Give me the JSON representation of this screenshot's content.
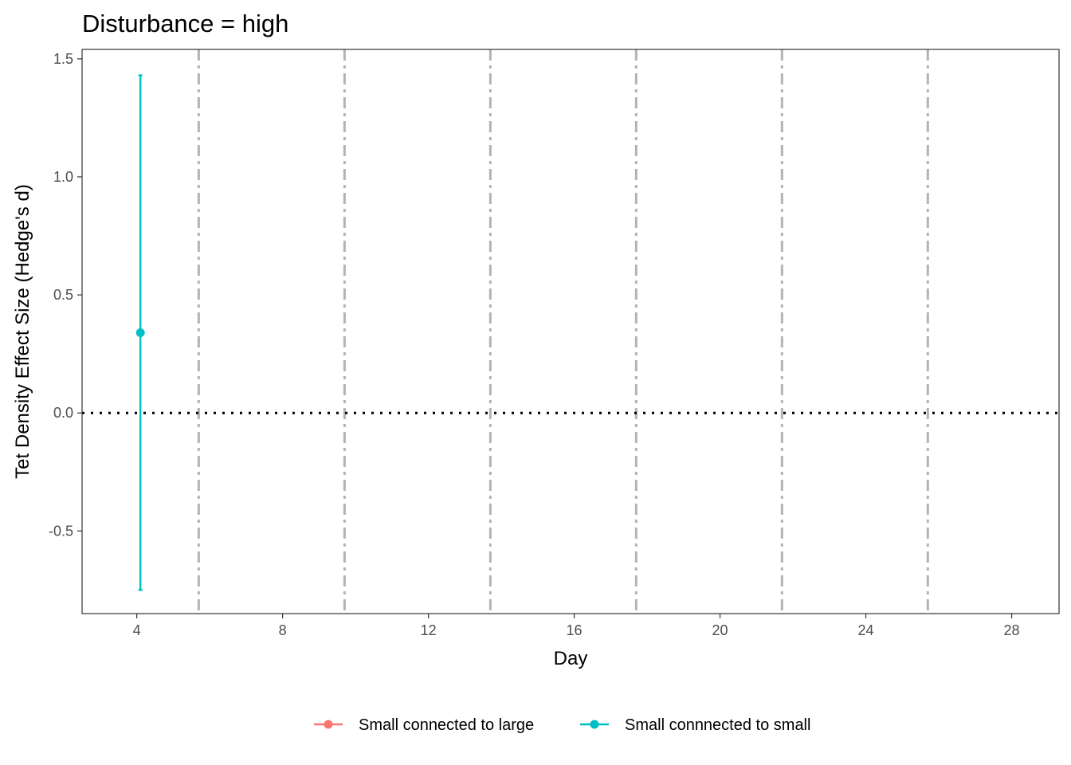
{
  "chart_data": {
    "type": "scatter",
    "title": "Disturbance = high",
    "xlabel": "Day",
    "ylabel": "Tet Density Effect Size (Hedge's d)",
    "xlim": [
      2.5,
      29.3
    ],
    "ylim": [
      -0.85,
      1.54
    ],
    "x_ticks": [
      4,
      8,
      12,
      16,
      20,
      24,
      28
    ],
    "y_ticks": [
      -0.5,
      0.0,
      0.5,
      1.0,
      1.5
    ],
    "y_tick_labels": [
      "-0.5",
      "0.0",
      "0.5",
      "1.0",
      "1.5"
    ],
    "grid": false,
    "reference_line": {
      "y": 0,
      "style": "dotted",
      "color": "#000000"
    },
    "vertical_lines": {
      "x": [
        5.7,
        9.7,
        13.7,
        17.7,
        21.7,
        25.7
      ],
      "style": "dashdot",
      "color": "#b3b3b3"
    },
    "legend_position": "bottom",
    "series": [
      {
        "name": "Small connected to large",
        "color": "#F8766D",
        "points": []
      },
      {
        "name": "Small connnected to small",
        "color": "#00BFC4",
        "points": [
          {
            "x": 4.1,
            "y": 0.34,
            "ymin": -0.75,
            "ymax": 1.43
          }
        ]
      }
    ]
  }
}
